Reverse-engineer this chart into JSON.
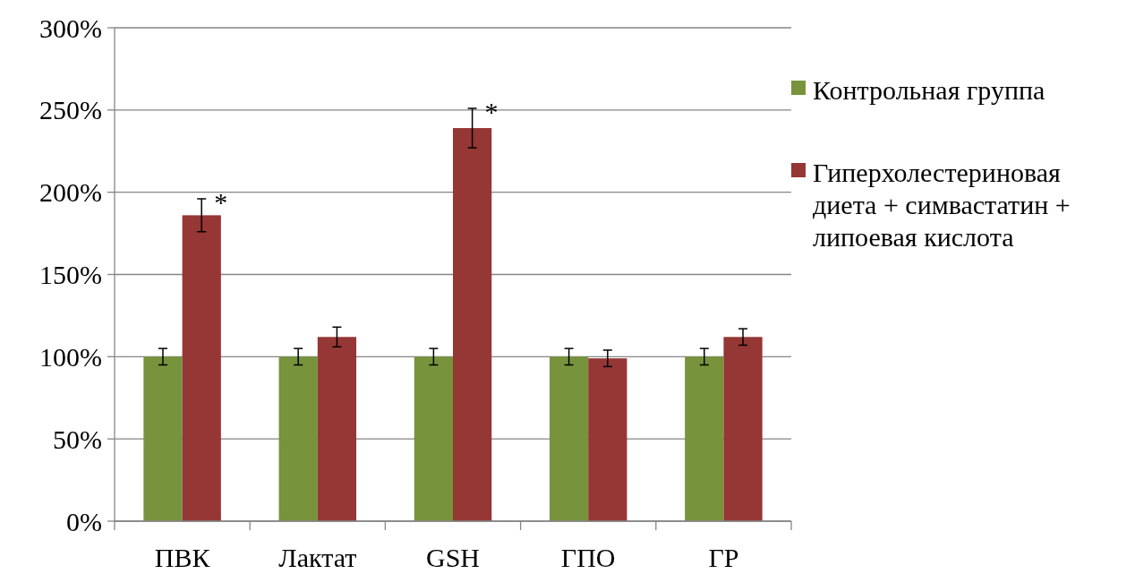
{
  "chart_data": {
    "type": "bar",
    "categories": [
      "ПВК",
      "Лактат",
      "GSH",
      "ГПО",
      "ГР"
    ],
    "series": [
      {
        "name": "Контрольная группа",
        "color": "#77933c",
        "values": [
          100,
          100,
          100,
          100,
          100
        ],
        "errors": [
          5,
          5,
          5,
          5,
          5
        ]
      },
      {
        "name": "Гиперхолестериновая диета + симвастатин + липоевая кислота",
        "color": "#953735",
        "values": [
          186,
          112,
          239,
          99,
          112
        ],
        "errors": [
          10,
          6,
          12,
          5,
          5
        ]
      }
    ],
    "ylim": [
      0,
      300
    ],
    "yticks": [
      {
        "value": 0,
        "label": "0%"
      },
      {
        "value": 50,
        "label": "50%"
      },
      {
        "value": 100,
        "label": "100%"
      },
      {
        "value": 150,
        "label": "150%"
      },
      {
        "value": 200,
        "label": "200%"
      },
      {
        "value": 250,
        "label": "250%"
      },
      {
        "value": 300,
        "label": "300%"
      }
    ],
    "grid": "y",
    "legend": "right",
    "annotations": [
      {
        "text": "*",
        "x": "ПВК",
        "y": 186
      },
      {
        "text": "*",
        "x": "GSH",
        "y": 239
      }
    ]
  }
}
